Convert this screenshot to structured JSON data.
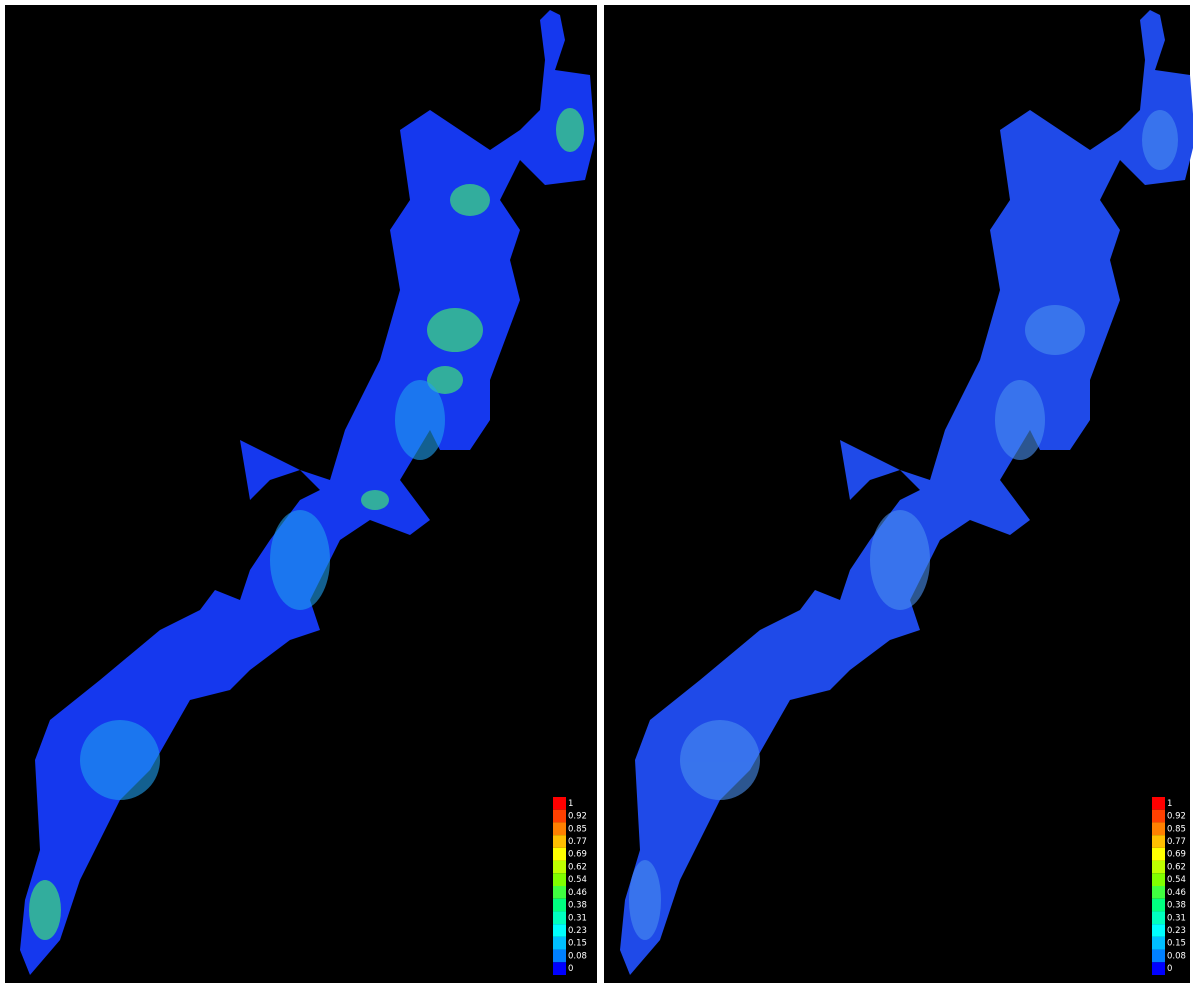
{
  "panels": [
    {
      "legend": {
        "labels": [
          1,
          0.92,
          0.85,
          0.77,
          0.69,
          0.62,
          0.54,
          0.46,
          0.38,
          0.31,
          0.23,
          0.15,
          0.08,
          0
        ],
        "colors": [
          "#ff0000",
          "#ff4000",
          "#ff8000",
          "#ffbf00",
          "#ffff00",
          "#bfff00",
          "#80ff00",
          "#40ff40",
          "#00ff80",
          "#00ffbf",
          "#00ffff",
          "#00bfff",
          "#0080ff",
          "#0000ff"
        ]
      }
    },
    {
      "legend": {
        "labels": [
          1,
          0.92,
          0.85,
          0.77,
          0.69,
          0.62,
          0.54,
          0.46,
          0.38,
          0.31,
          0.23,
          0.15,
          0.08,
          0
        ],
        "colors": [
          "#ff0000",
          "#ff4000",
          "#ff8000",
          "#ffbf00",
          "#ffff00",
          "#bfff00",
          "#80ff00",
          "#40ff40",
          "#00ff80",
          "#00ffbf",
          "#00ffff",
          "#00bfff",
          "#0080ff",
          "#0000ff"
        ]
      }
    }
  ]
}
